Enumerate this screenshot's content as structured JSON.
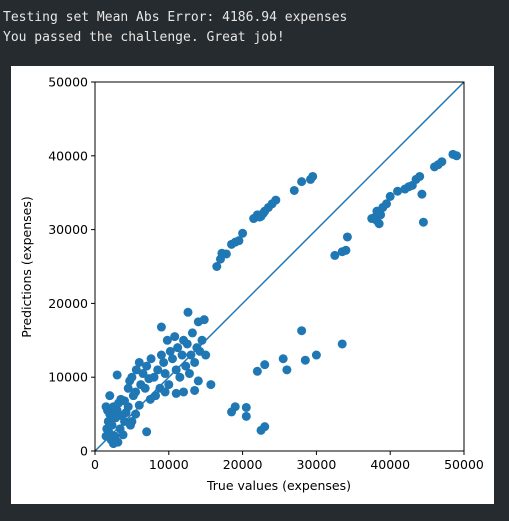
{
  "output": [
    "Testing set Mean Abs Error: 4186.94 expenses",
    "You passed the challenge. Great job!"
  ],
  "chart_data": {
    "type": "scatter",
    "xlabel": "True values (expenses)",
    "ylabel": "Predictions (expenses)",
    "xlim": [
      0,
      50000
    ],
    "ylim": [
      0,
      50000
    ],
    "xticks": [
      0,
      10000,
      20000,
      30000,
      40000,
      50000
    ],
    "yticks": [
      0,
      10000,
      20000,
      30000,
      40000,
      50000
    ],
    "color": "#1f77b4",
    "reference_line": {
      "x": [
        0,
        50000
      ],
      "y": [
        0,
        50000
      ],
      "color": "#1f77b4"
    },
    "x": [
      16500,
      17000,
      17200,
      17800,
      18500,
      19000,
      19500,
      20000,
      21500,
      22000,
      22300,
      22800,
      23000,
      23500,
      24000,
      24500,
      27000,
      28000,
      29200,
      29500,
      22500,
      32500,
      33500,
      34000,
      34200,
      37500,
      38000,
      38200,
      38500,
      38700,
      39000,
      39500,
      40000,
      41000,
      42000,
      42500,
      43000,
      43500,
      44000,
      44300,
      44500,
      46000,
      46500,
      47000,
      48500,
      49000,
      38200,
      15700,
      18500,
      19000,
      20500,
      20500,
      22000,
      22500,
      23000,
      23000,
      25500,
      26000,
      28000,
      28500,
      30000,
      33500,
      1500,
      1700,
      2000,
      1800,
      1600,
      1500,
      2200,
      2500,
      1900,
      2300,
      2800,
      3000,
      3200,
      3500,
      2700,
      3100,
      3400,
      3800,
      4000,
      4200,
      4500,
      3000,
      4500,
      4700,
      5000,
      5200,
      5500,
      5600,
      6000,
      6200,
      6500,
      6800,
      7000,
      7000,
      7300,
      7600,
      8000,
      8200,
      8500,
      8800,
      9000,
      9000,
      9300,
      9500,
      9800,
      10000,
      10200,
      10500,
      10800,
      11000,
      11200,
      11500,
      11800,
      12000,
      12300,
      12500,
      12600,
      12800,
      13000,
      13200,
      13500,
      13800,
      14000,
      14200,
      14500,
      14800,
      15000,
      4000,
      5000,
      5500,
      6000,
      2000,
      2500,
      3600,
      4800,
      7500,
      9500,
      11000,
      12000,
      13500,
      14000
    ],
    "y": [
      25000,
      26000,
      26800,
      26700,
      28000,
      28300,
      28500,
      29500,
      31500,
      32000,
      31700,
      32200,
      32500,
      33000,
      33500,
      34000,
      35300,
      36500,
      36800,
      37200,
      31800,
      26500,
      27000,
      27200,
      29000,
      31500,
      31700,
      31200,
      30800,
      32000,
      33000,
      33500,
      34500,
      35200,
      35500,
      35800,
      36000,
      36800,
      37200,
      34800,
      31000,
      38500,
      38800,
      39200,
      40200,
      40000,
      32500,
      9000,
      5300,
      6000,
      5900,
      4700,
      10800,
      2800,
      3300,
      11700,
      12500,
      11000,
      16300,
      12300,
      13000,
      14500,
      6000,
      5500,
      7500,
      4000,
      3000,
      2000,
      1500,
      1000,
      2500,
      3500,
      4500,
      5500,
      6500,
      7000,
      2000,
      1200,
      3000,
      2200,
      4000,
      5200,
      6000,
      10300,
      8500,
      9500,
      10000,
      7500,
      8000,
      11000,
      12000,
      9000,
      10500,
      8500,
      2600,
      11500,
      9800,
      12500,
      10000,
      7500,
      11000,
      8500,
      13000,
      16800,
      12000,
      10500,
      15000,
      9000,
      13500,
      12500,
      15500,
      11000,
      14000,
      10000,
      13000,
      15000,
      11500,
      14500,
      18800,
      10500,
      13000,
      16000,
      12000,
      14000,
      17500,
      13500,
      15000,
      17800,
      13000,
      6800,
      4000,
      5000,
      6200,
      5000,
      6000,
      4800,
      3500,
      7000,
      8000,
      7800,
      8000,
      8200,
      9500
    ]
  }
}
